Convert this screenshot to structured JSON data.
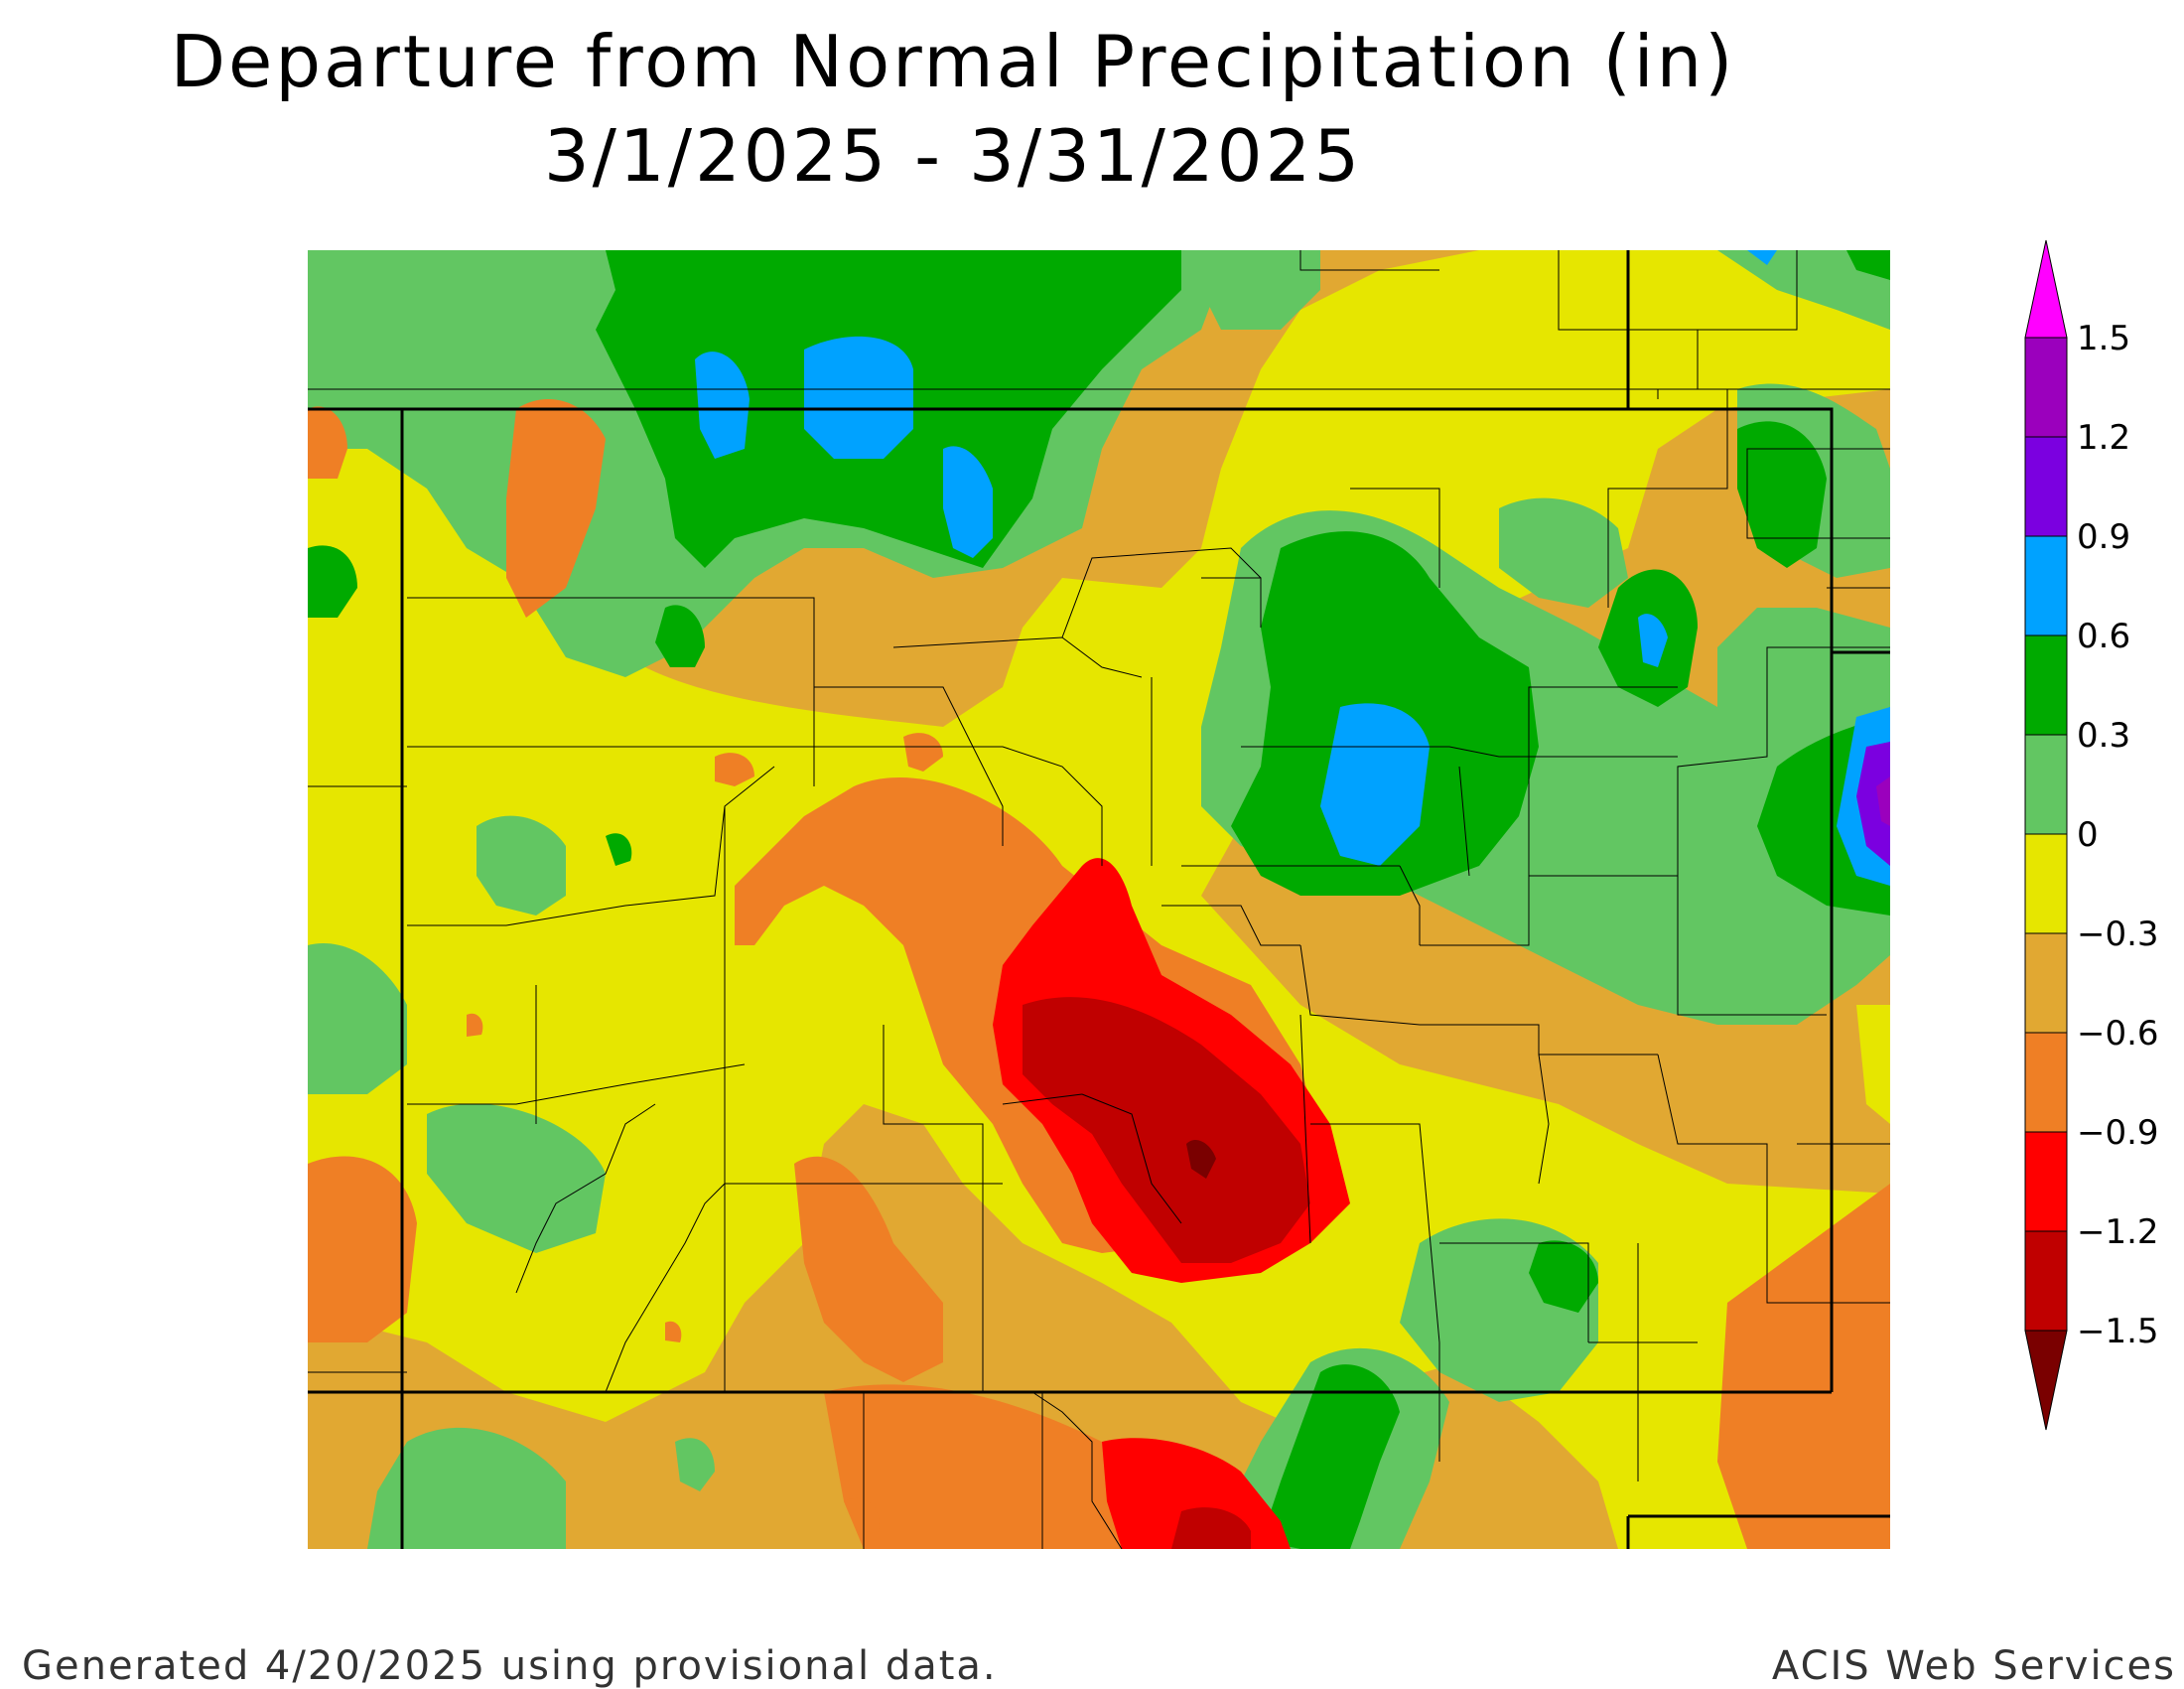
{
  "title_line1": "Departure from Normal Precipitation (in)",
  "title_line2": "3/1/2025 - 3/31/2025",
  "footer_left": "Generated 4/20/2025 using provisional data.",
  "footer_right": "ACIS Web Services",
  "legend": {
    "labels": [
      "1.5",
      "1.2",
      "0.9",
      "0.6",
      "0.3",
      "0",
      "−0.3",
      "−0.6",
      "−0.9",
      "−1.2",
      "−1.5"
    ],
    "colors_high_to_low": [
      "#9b00bd",
      "#7b00e0",
      "#00a2ff",
      "#00aa00",
      "#62c662",
      "#e6e600",
      "#e1a832",
      "#ef7f25",
      "#ff0000",
      "#c00000"
    ],
    "over_color": "#ff00ff",
    "under_color": "#7a0000"
  },
  "map_colors": {
    "lt_m12": "#c00000",
    "m12_m09": "#ff0000",
    "m09_m06": "#ef7f25",
    "m06_m03": "#e1a832",
    "m03_0": "#e6e600",
    "p0_03": "#62c662",
    "p03_06": "#00aa00",
    "p06_09": "#00a2ff",
    "p09_12": "#7b00e0",
    "p12_15": "#9b00bd"
  }
}
